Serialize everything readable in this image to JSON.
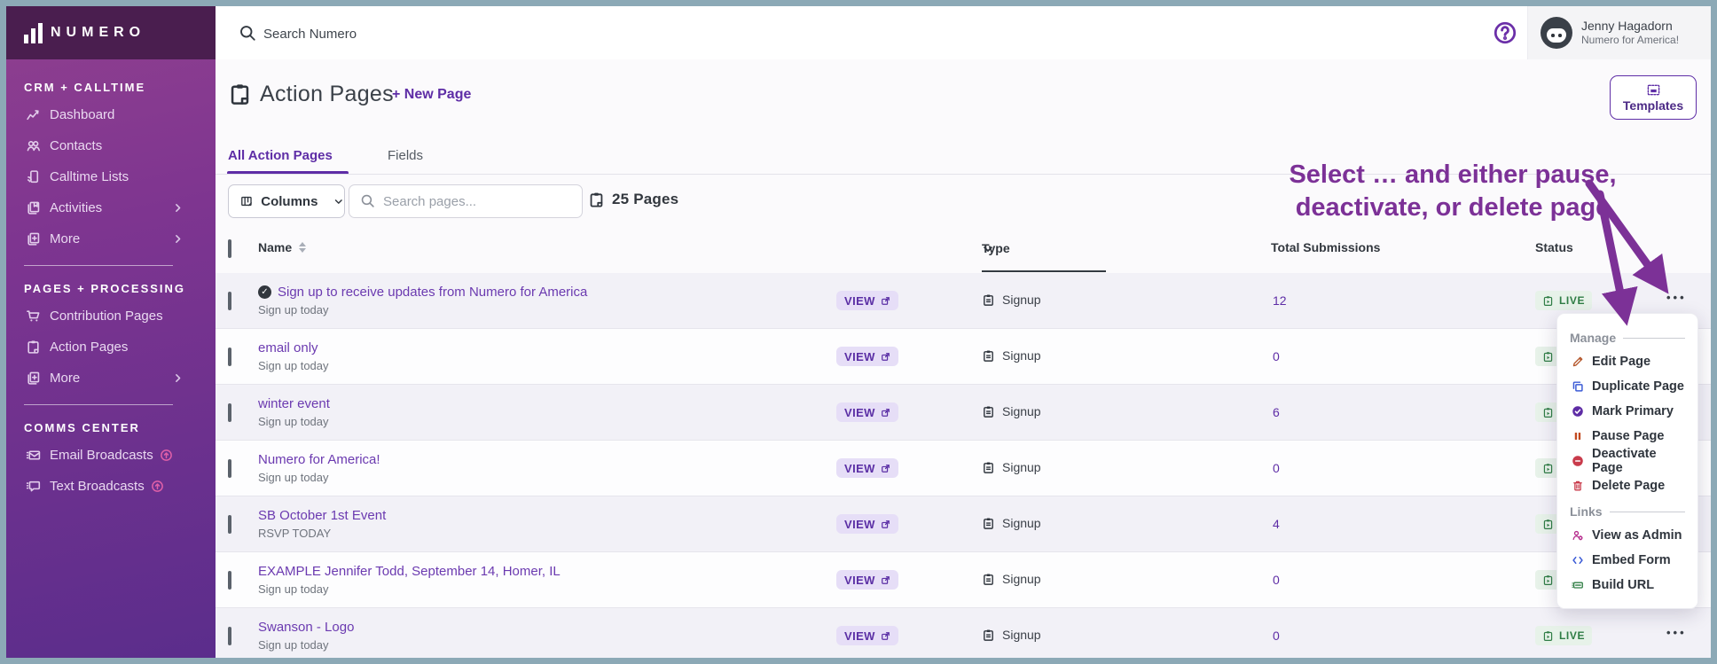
{
  "colors": {
    "frame": "#8ca9b6",
    "sidebar_top": "#4a1e4f",
    "sidebar_grad_start": "#90408f",
    "sidebar_grad_end": "#5b2d8c",
    "accent_purple": "#5e2da6",
    "annotation_purple": "#7c3197",
    "live_green": "#2f7d45",
    "alt_row": "#f2f1f7"
  },
  "sidebar": {
    "logo": "NUMERO",
    "sections": [
      {
        "title": "CRM + CALLTIME",
        "items": [
          {
            "label": "Dashboard",
            "icon": "chart"
          },
          {
            "label": "Contacts",
            "icon": "people"
          },
          {
            "label": "Calltime Lists",
            "icon": "phone"
          },
          {
            "label": "Activities",
            "icon": "pages",
            "chevron": true
          },
          {
            "label": "More",
            "icon": "pages-plus",
            "chevron": true
          }
        ]
      },
      {
        "title": "PAGES + PROCESSING",
        "items": [
          {
            "label": "Contribution Pages",
            "icon": "cart"
          },
          {
            "label": "Action Pages",
            "icon": "clipboard"
          },
          {
            "label": "More",
            "icon": "pages-plus",
            "chevron": true
          }
        ]
      },
      {
        "title": "COMMS CENTER",
        "items": [
          {
            "label": "Email Broadcasts",
            "icon": "mail",
            "boost": true
          },
          {
            "label": "Text Broadcasts",
            "icon": "chat",
            "boost": true
          }
        ]
      }
    ]
  },
  "topbar": {
    "search_placeholder": "Search Numero",
    "user_name": "Jenny Hagadorn",
    "user_org": "Numero for America!"
  },
  "header": {
    "title": "Action Pages",
    "new_page_label": "+ New Page",
    "templates_label": "Templates"
  },
  "tabs": [
    {
      "label": "All Action Pages",
      "active": true
    },
    {
      "label": "Fields",
      "active": false
    }
  ],
  "toolbar": {
    "columns_label": "Columns",
    "search_placeholder": "Search pages...",
    "count_label": "25 Pages"
  },
  "table": {
    "headers": {
      "name": "Name",
      "type": "Type",
      "total": "Total Submissions",
      "status": "Status"
    },
    "view_label": "VIEW",
    "rows": [
      {
        "badge": true,
        "name": "Sign up to receive updates from Numero for America",
        "subtitle": "Sign up today",
        "type": "Signup",
        "total": "12",
        "status": "LIVE"
      },
      {
        "badge": false,
        "name": "email only",
        "subtitle": "Sign up today",
        "type": "Signup",
        "total": "0",
        "status": "LIVE"
      },
      {
        "badge": false,
        "name": "winter event",
        "subtitle": "Sign up today",
        "type": "Signup",
        "total": "6",
        "status": "LIVE"
      },
      {
        "badge": false,
        "name": "Numero for America!",
        "subtitle": "Sign up today",
        "type": "Signup",
        "total": "0",
        "status": "LIVE"
      },
      {
        "badge": false,
        "name": "SB October 1st Event",
        "subtitle": "RSVP TODAY",
        "type": "Signup",
        "total": "4",
        "status": "LIVE"
      },
      {
        "badge": false,
        "name": "EXAMPLE Jennifer Todd, September 14, Homer, IL",
        "subtitle": "Sign up today",
        "type": "Signup",
        "total": "0",
        "status": "LIVE"
      },
      {
        "badge": false,
        "name": "Swanson - Logo",
        "subtitle": "Sign up today",
        "type": "Signup",
        "total": "0",
        "status": "LIVE"
      }
    ]
  },
  "annotation": {
    "line1": "Select … and either pause,",
    "line2": "deactivate, or delete page"
  },
  "menu": {
    "sections": [
      {
        "title": "Manage",
        "items": [
          {
            "label": "Edit Page",
            "icon": "pencil",
            "color": "#b4562a"
          },
          {
            "label": "Duplicate Page",
            "icon": "duplicate",
            "color": "#3b5bd6"
          },
          {
            "label": "Mark Primary",
            "icon": "check-circle",
            "color": "#5e2ca5"
          },
          {
            "label": "Pause Page",
            "icon": "pause",
            "color": "#c2491f"
          },
          {
            "label": "Deactivate Page",
            "icon": "minus-circle",
            "color": "#c93b4b"
          },
          {
            "label": "Delete Page",
            "icon": "trash",
            "color": "#c93b4b"
          }
        ]
      },
      {
        "title": "Links",
        "items": [
          {
            "label": "View as Admin",
            "icon": "admin-person",
            "color": "#b52b8c"
          },
          {
            "label": "Embed Form",
            "icon": "embed-code",
            "color": "#3b5bd6"
          },
          {
            "label": "Build URL",
            "icon": "link-card",
            "color": "#2e7d43"
          }
        ]
      }
    ]
  }
}
